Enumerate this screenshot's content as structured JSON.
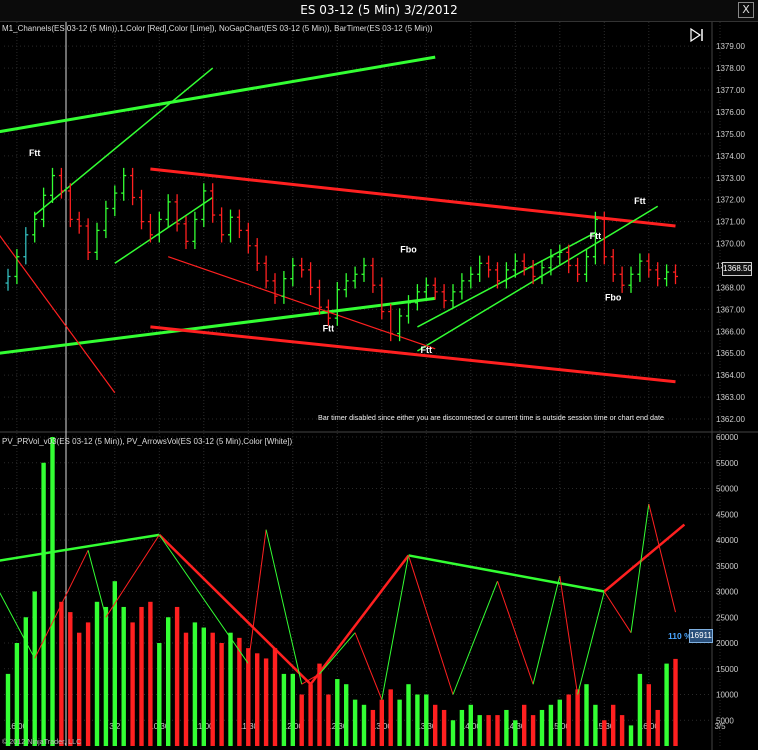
{
  "window": {
    "title": "ES 03-12 (5 Min)  3/2/2012",
    "close_label": "X"
  },
  "top_panel": {
    "label": "M1_Channels(ES 03-12 (5 Min)),1,Color [Red],Color [Lime]), NoGapChart(ES 03-12 (5 Min)), BarTimer(ES 03-12 (5 Min))",
    "bar_timer_message": "Bar timer disabled since either you are disconnected or current time is outside session time or chart end date",
    "last_price": "1368.50",
    "signals": [
      {
        "text": "Ftt",
        "x": 3,
        "y": 1374.0
      },
      {
        "text": "Ftt",
        "x": 36,
        "y": 1366.0
      },
      {
        "text": "Fbo",
        "x": 45,
        "y": 1369.6
      },
      {
        "text": "Ftt",
        "x": 47,
        "y": 1365.0
      },
      {
        "text": "Ftt",
        "x": 66,
        "y": 1370.2
      },
      {
        "text": "Fbo",
        "x": 68,
        "y": 1367.4
      },
      {
        "text": "Ftt",
        "x": 71,
        "y": 1371.8
      }
    ]
  },
  "bottom_panel": {
    "label": "PV_PRVol_v03(ES 03-12 (5 Min)), PV_ArrowsVol(ES 03-12 (5 Min),Color [White])",
    "vol_percent_text": "110 % [ 16",
    "current_volume": "16911"
  },
  "copyright": "© 2012 NinjaTrader, LLC",
  "icons": {
    "play": "play-bar-icon",
    "close": "close-icon"
  },
  "colors": {
    "up": "#33ff33",
    "down": "#ff2020",
    "cyan": "#33bbbb",
    "background": "#000000",
    "grid": "#2a2a2a"
  },
  "chart_data": [
    {
      "type": "candlestick",
      "title": "ES 03-12 (5 Min)  3/2/2012",
      "x_labels": [
        "16:00",
        "3/2",
        "10:30",
        "11:00",
        "11:30",
        "12:00",
        "12:30",
        "13:00",
        "13:30",
        "14:00",
        "14:30",
        "15:00",
        "15:30",
        "16:00",
        "3/5"
      ],
      "x_label_positions": [
        1,
        12,
        17,
        22,
        27,
        32,
        37,
        42,
        47,
        52,
        57,
        62,
        67,
        72,
        80
      ],
      "y_ticks": [
        1362.0,
        1363.0,
        1364.0,
        1365.0,
        1366.0,
        1367.0,
        1368.0,
        1369.0,
        1370.0,
        1371.0,
        1372.0,
        1373.0,
        1374.0,
        1375.0,
        1376.0,
        1377.0,
        1378.0,
        1379.0
      ],
      "ylim": [
        1361.5,
        1379.6
      ],
      "close": [
        1368.5,
        1369.4,
        1370.4,
        1371.1,
        1372.2,
        1373.1,
        1372.4,
        1371.1,
        1370.8,
        1369.6,
        1370.6,
        1371.6,
        1372.3,
        1373.1,
        1372.1,
        1371.0,
        1370.4,
        1371.1,
        1371.9,
        1370.9,
        1370.1,
        1371.1,
        1372.4,
        1371.3,
        1370.4,
        1371.2,
        1370.6,
        1369.9,
        1369.1,
        1368.3,
        1367.6,
        1368.4,
        1369.0,
        1368.8,
        1368.0,
        1367.1,
        1366.6,
        1367.9,
        1368.3,
        1368.6,
        1369.0,
        1368.1,
        1366.9,
        1365.9,
        1366.7,
        1367.3,
        1367.8,
        1368.1,
        1367.8,
        1367.4,
        1367.8,
        1368.3,
        1368.6,
        1369.1,
        1368.8,
        1368.3,
        1368.8,
        1369.2,
        1368.9,
        1368.5,
        1368.9,
        1369.4,
        1369.6,
        1369.0,
        1368.6,
        1369.4,
        1371.1,
        1369.4,
        1368.6,
        1368.1,
        1368.6,
        1369.2,
        1368.8,
        1368.4,
        1368.7,
        1368.5
      ],
      "open_step": 0.3
    },
    {
      "type": "bar",
      "title": "PV_PRVol_v03",
      "y_ticks": [
        5000,
        10000,
        15000,
        20000,
        25000,
        30000,
        35000,
        40000,
        45000,
        50000,
        55000,
        60000
      ],
      "ylim": [
        0,
        60000
      ],
      "volume": [
        14000,
        20000,
        25000,
        30000,
        55000,
        60000,
        28000,
        26000,
        22000,
        24000,
        28000,
        27000,
        32000,
        27000,
        24000,
        27000,
        28000,
        20000,
        25000,
        27000,
        22000,
        24000,
        23000,
        22000,
        20000,
        22000,
        21000,
        19000,
        18000,
        17000,
        19000,
        14000,
        14000,
        10000,
        12000,
        16000,
        10000,
        13000,
        12000,
        9000,
        8000,
        7000,
        9000,
        11000,
        9000,
        12000,
        10000,
        10000,
        8000,
        7000,
        5000,
        7000,
        8000,
        6000,
        6000,
        6000,
        7000,
        5000,
        8000,
        6000,
        7000,
        8000,
        9000,
        10000,
        11000,
        12000,
        8000,
        5000,
        8000,
        6000,
        4000,
        14000,
        12000,
        7000,
        16000,
        16911
      ]
    }
  ]
}
